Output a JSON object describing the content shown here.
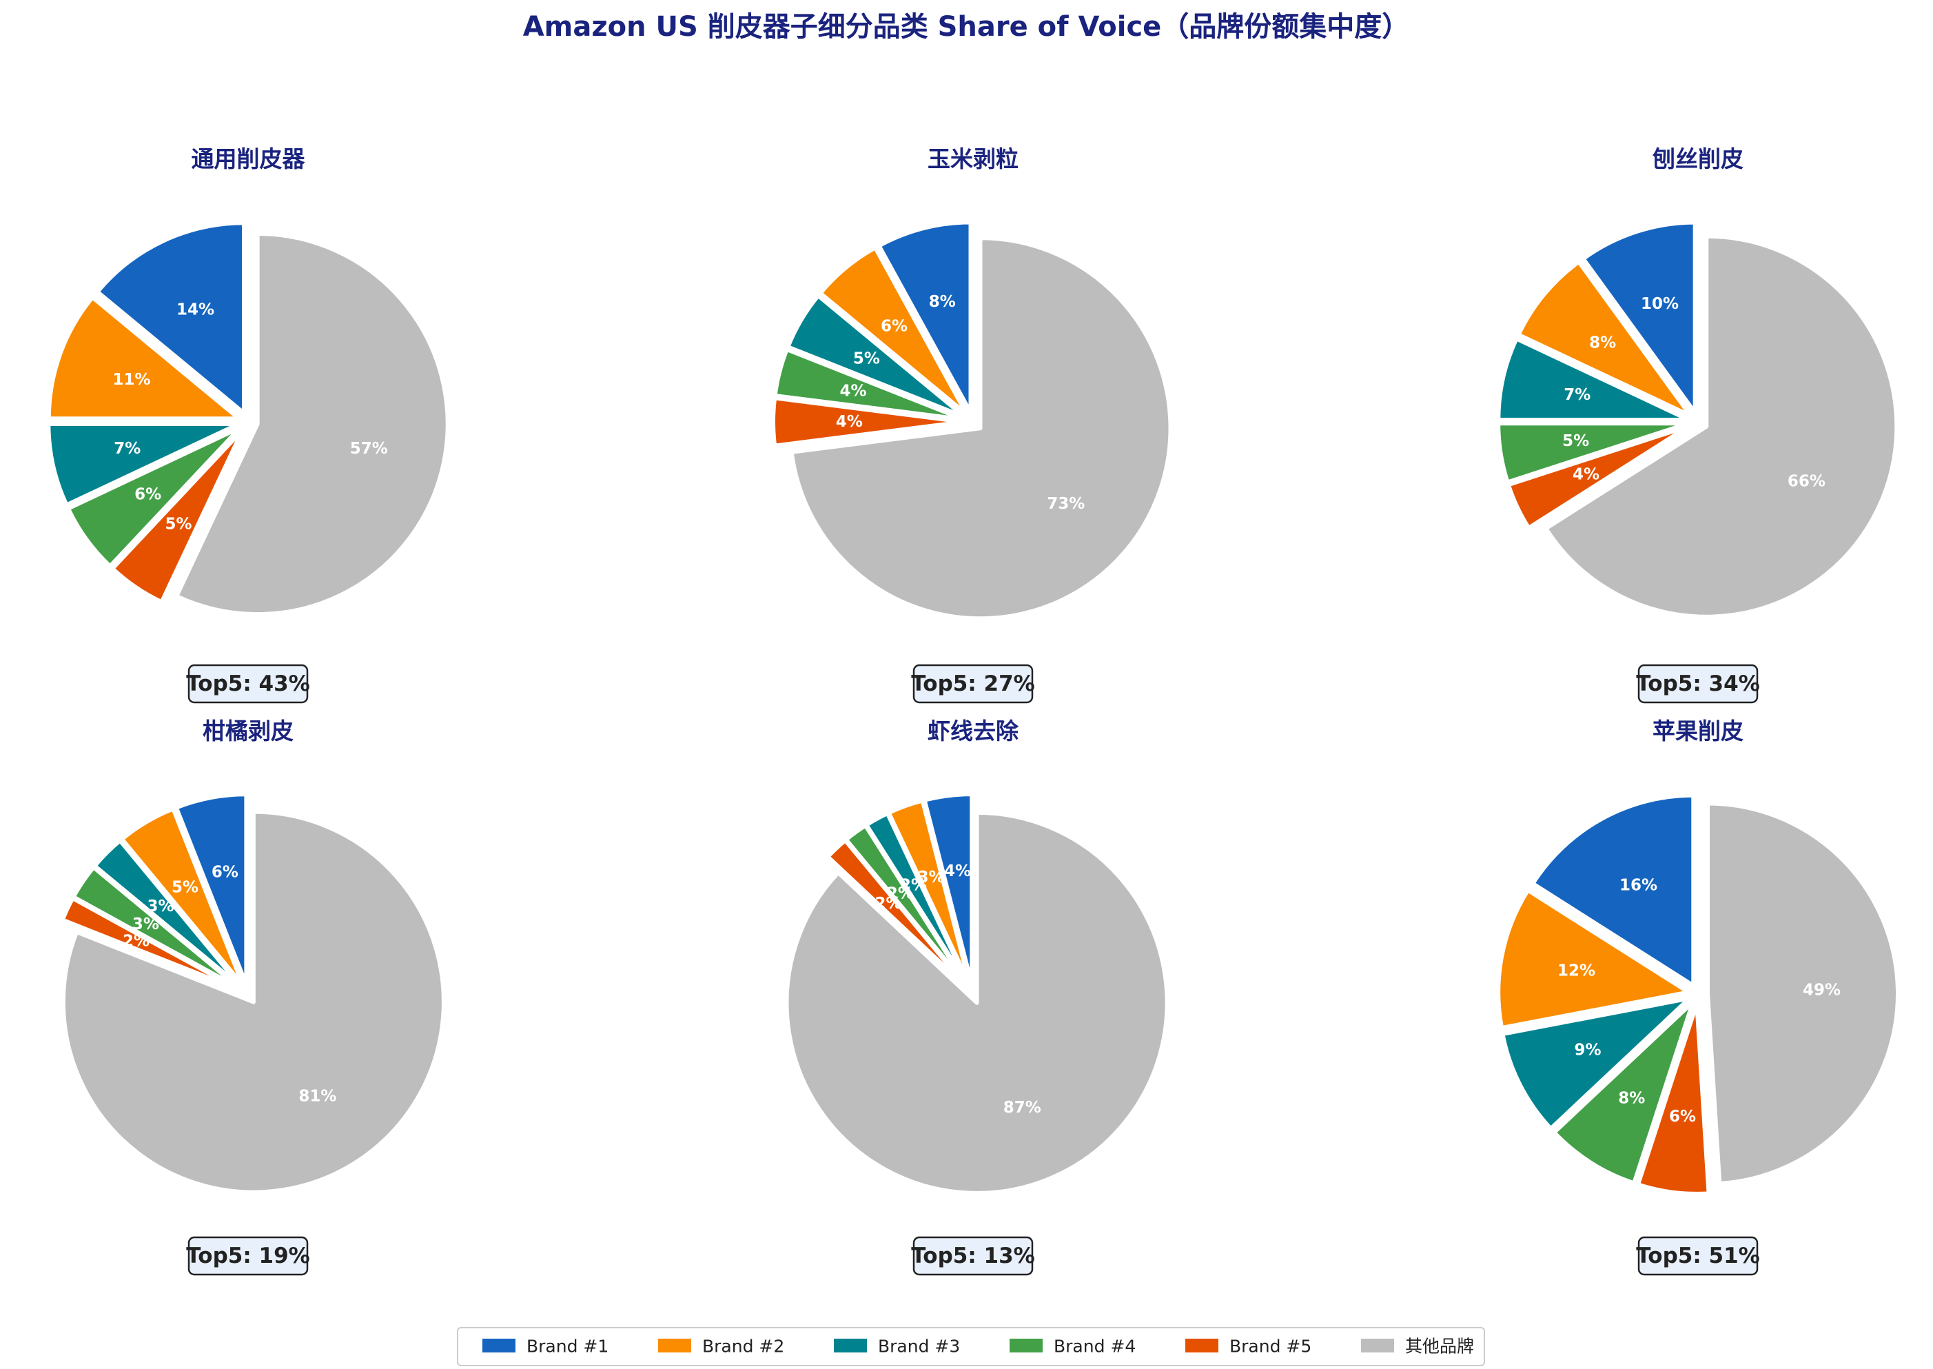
{
  "title": "Amazon US 削皮器子细分品类 Share of Voice（品牌份额集中度）",
  "legend": [
    {
      "name": "Brand #1",
      "color": "#1565C0"
    },
    {
      "name": "Brand #2",
      "color": "#FB8C00"
    },
    {
      "name": "Brand #3",
      "color": "#00838F"
    },
    {
      "name": "Brand #4",
      "color": "#43A047"
    },
    {
      "name": "Brand #5",
      "color": "#E65100"
    },
    {
      "name": "其他品牌",
      "color": "#BDBDBD"
    }
  ],
  "chart_data": [
    {
      "type": "pie",
      "title": "通用削皮器",
      "labels": [
        "Brand #1",
        "Brand #2",
        "Brand #3",
        "Brand #4",
        "Brand #5",
        "其他品牌"
      ],
      "values": [
        14,
        11,
        7,
        6,
        5,
        57
      ],
      "value_labels": [
        "14%",
        "11%",
        "7%",
        "6%",
        "5%",
        "57%"
      ],
      "annotation": "Top5: 43%"
    },
    {
      "type": "pie",
      "title": "玉米剥粒",
      "labels": [
        "Brand #1",
        "Brand #2",
        "Brand #3",
        "Brand #4",
        "Brand #5",
        "其他品牌"
      ],
      "values": [
        8,
        6,
        5,
        4,
        4,
        73
      ],
      "value_labels": [
        "8%",
        "6%",
        "5%",
        "4%",
        "4%",
        "73%"
      ],
      "annotation": "Top5: 27%"
    },
    {
      "type": "pie",
      "title": "刨丝削皮",
      "labels": [
        "Brand #1",
        "Brand #2",
        "Brand #3",
        "Brand #4",
        "Brand #5",
        "其他品牌"
      ],
      "values": [
        10,
        8,
        7,
        5,
        4,
        66
      ],
      "value_labels": [
        "10%",
        "8%",
        "7%",
        "5%",
        "4%",
        "66%"
      ],
      "annotation": "Top5: 34%"
    },
    {
      "type": "pie",
      "title": "柑橘剥皮",
      "labels": [
        "Brand #1",
        "Brand #2",
        "Brand #3",
        "Brand #4",
        "Brand #5",
        "其他品牌"
      ],
      "values": [
        6,
        5,
        3,
        3,
        2,
        81
      ],
      "value_labels": [
        "6%",
        "5%",
        "3%",
        "3%",
        "2%",
        "81%"
      ],
      "annotation": "Top5: 19%"
    },
    {
      "type": "pie",
      "title": "虾线去除",
      "labels": [
        "Brand #1",
        "Brand #2",
        "Brand #3",
        "Brand #4",
        "Brand #5",
        "其他品牌"
      ],
      "values": [
        4,
        3,
        2,
        2,
        2,
        87
      ],
      "value_labels": [
        "4%",
        "3%",
        "2%",
        "2%",
        "2%",
        "87%"
      ],
      "annotation": "Top5: 13%"
    },
    {
      "type": "pie",
      "title": "苹果削皮",
      "labels": [
        "Brand #1",
        "Brand #2",
        "Brand #3",
        "Brand #4",
        "Brand #5",
        "其他品牌"
      ],
      "values": [
        16,
        12,
        9,
        8,
        6,
        49
      ],
      "value_labels": [
        "16%",
        "12%",
        "9%",
        "8%",
        "6%",
        "49%"
      ],
      "annotation": "Top5: 51%"
    }
  ]
}
